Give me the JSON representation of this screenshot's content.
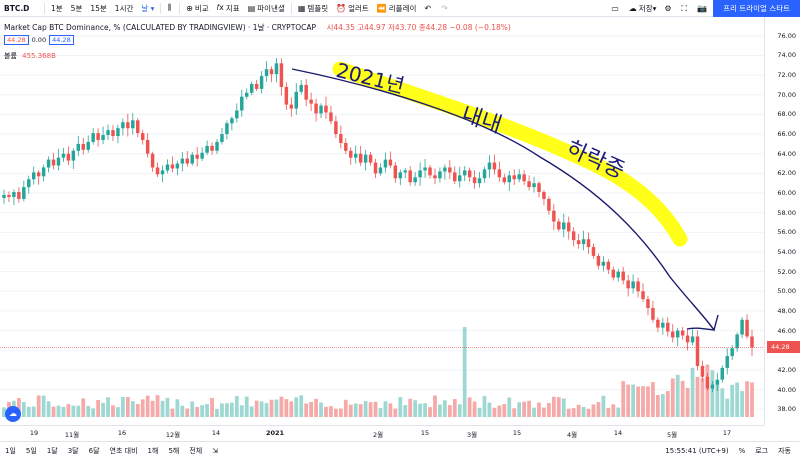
{
  "toolbar": {
    "symbol": "BTC.D",
    "intervals": [
      "1분",
      "5분",
      "15분",
      "1시간"
    ],
    "compare": "비교",
    "indicators": "지표",
    "financials": "파이낸셜",
    "templates": "템플릿",
    "alert": "얼러트",
    "replay": "리플레이",
    "save": "저장",
    "trial_button": "프리 트라이얼 스타트"
  },
  "legend": {
    "title": "Market Cap BTC Dominance, %  (CALCULATED BY TRADINGVIEW) · 1날 · CRYPTOCAP",
    "ohlc": "시44.35  고44.97  저43.70  종44.28  −0.08 (−0.18%)",
    "box1": "44.28",
    "box_mid": "0.00",
    "box2": "44.28",
    "volume_label": "볼륨",
    "volume_value": "455.368B"
  },
  "annotation": {
    "line1": "2021년",
    "line2": "내내",
    "line3": "하락중"
  },
  "price_axis": {
    "labels": [
      "76.00",
      "74.00",
      "72.00",
      "70.00",
      "68.00",
      "66.00",
      "64.00",
      "62.00",
      "60.00",
      "58.00",
      "56.00",
      "54.00",
      "52.00",
      "50.00",
      "48.00",
      "46.00",
      "44.00",
      "42.00",
      "40.00",
      "38.00"
    ],
    "current": "44.28"
  },
  "time_axis": {
    "labels": [
      "19",
      "11월",
      "16",
      "12월",
      "14",
      "2021",
      "2월",
      "15",
      "3월",
      "15",
      "4월",
      "14",
      "5월",
      "17"
    ]
  },
  "bottom_bar": {
    "ranges": [
      "1일",
      "5일",
      "1달",
      "3달",
      "6달",
      "연초 대비",
      "1해",
      "5해",
      "전체"
    ],
    "clock": "15:55:41 (UTC+9)",
    "percent": "%",
    "log": "로그",
    "auto": "자동"
  },
  "colors": {
    "up": "#26a69a",
    "down": "#ef5350",
    "accent": "#2962ff",
    "highlight": "#ffff00"
  },
  "chart_data": {
    "type": "candlestick",
    "title": "Market Cap BTC Dominance, %",
    "ylim": [
      37,
      77
    ],
    "close": [
      59.8,
      59.6,
      60.1,
      59.4,
      60.6,
      61.4,
      62.1,
      61.7,
      62.6,
      63.4,
      62.8,
      63.6,
      64.0,
      63.3,
      64.3,
      65.0,
      64.4,
      65.2,
      66.1,
      65.4,
      65.9,
      66.4,
      65.8,
      66.6,
      67.2,
      66.6,
      67.4,
      66.1,
      65.4,
      64.0,
      62.6,
      61.9,
      62.3,
      62.9,
      62.5,
      63.0,
      63.5,
      63.0,
      63.9,
      63.5,
      64.1,
      64.8,
      64.3,
      65.2,
      66.0,
      67.1,
      67.6,
      68.4,
      69.8,
      70.2,
      71.1,
      70.6,
      71.9,
      72.6,
      72.1,
      73.2,
      70.8,
      69.0,
      68.6,
      70.3,
      71.0,
      69.5,
      69.1,
      68.1,
      68.9,
      68.2,
      67.3,
      66.0,
      65.1,
      64.3,
      63.6,
      64.0,
      63.1,
      63.9,
      63.1,
      62.0,
      62.6,
      63.4,
      62.8,
      61.5,
      62.1,
      62.3,
      61.1,
      61.6,
      62.3,
      62.6,
      61.8,
      61.5,
      62.2,
      62.6,
      62.1,
      61.2,
      61.8,
      62.3,
      61.6,
      61.0,
      61.5,
      62.4,
      63.1,
      62.4,
      61.6,
      61.1,
      61.8,
      61.4,
      61.9,
      61.2,
      60.6,
      61.0,
      60.1,
      59.4,
      58.2,
      57.1,
      56.3,
      57.0,
      56.1,
      55.2,
      54.8,
      55.3,
      54.5,
      53.6,
      52.6,
      53.0,
      52.2,
      51.4,
      52.0,
      51.1,
      50.3,
      51.0,
      50.0,
      49.2,
      48.3,
      47.1,
      46.3,
      46.8,
      45.9,
      45.3,
      46.0,
      45.5,
      44.8,
      45.4,
      42.4,
      41.3,
      40.1,
      40.5,
      41.0,
      42.2,
      43.4,
      44.2,
      45.6,
      47.1,
      45.4,
      44.28
    ]
  }
}
